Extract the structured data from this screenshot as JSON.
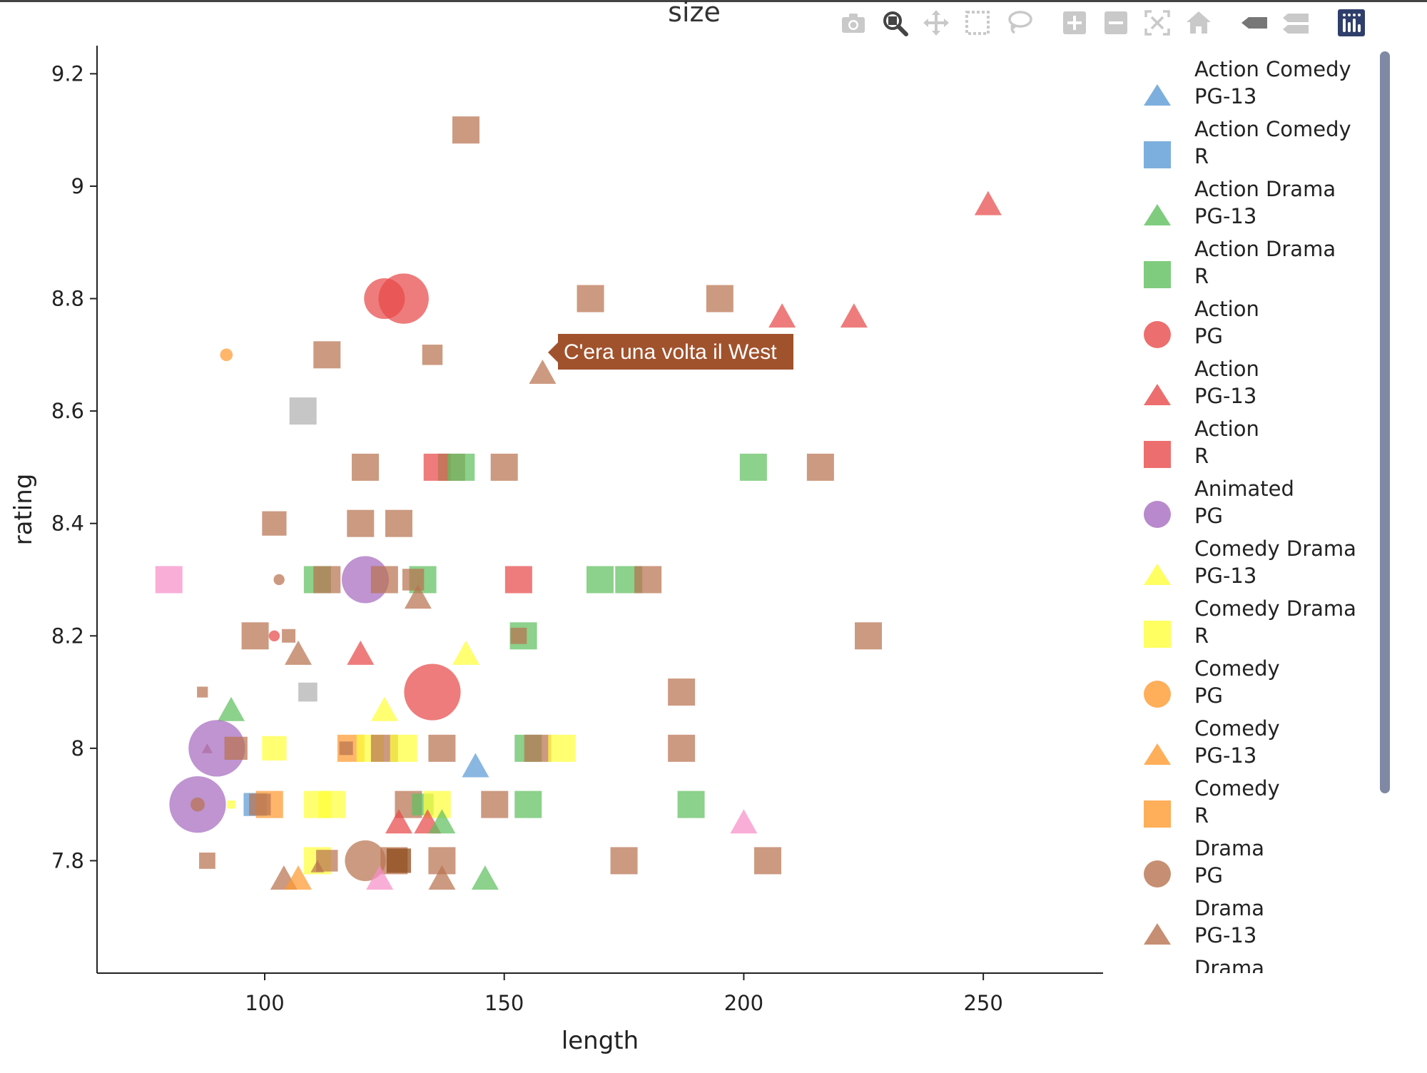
{
  "title": "size",
  "icons": [
    "camera-icon",
    "zoom-icon",
    "pan-icon",
    "box-select-icon",
    "lasso-select-icon",
    "zoom-in-icon",
    "zoom-out-icon",
    "autoscale-icon",
    "reset-axes-icon",
    "hover-closest-icon",
    "hover-compare-icon",
    "plotly-logo-icon"
  ],
  "tooltip": {
    "text": "C'era una volta il West",
    "color": "#a0522d"
  },
  "legend": [
    {
      "line1": "Action Comedy",
      "line2": "PG-13",
      "symbol": "triangle",
      "color": "#5b9bd5"
    },
    {
      "line1": "Action Comedy",
      "line2": "R",
      "symbol": "square",
      "color": "#5b9bd5"
    },
    {
      "line1": "Action Drama",
      "line2": "PG-13",
      "symbol": "triangle",
      "color": "#5fbf5f"
    },
    {
      "line1": "Action Drama",
      "line2": "R",
      "symbol": "square",
      "color": "#5fbf5f"
    },
    {
      "line1": "Action",
      "line2": "PG",
      "symbol": "circle",
      "color": "#e84a4a"
    },
    {
      "line1": "Action",
      "line2": "PG-13",
      "symbol": "triangle",
      "color": "#e84a4a"
    },
    {
      "line1": "Action",
      "line2": "R",
      "symbol": "square",
      "color": "#e84a4a"
    },
    {
      "line1": "Animated",
      "line2": "PG",
      "symbol": "circle",
      "color": "#a66bbf"
    },
    {
      "line1": "Comedy Drama",
      "line2": "PG-13",
      "symbol": "triangle",
      "color": "#ffff3a"
    },
    {
      "line1": "Comedy Drama",
      "line2": "R",
      "symbol": "square",
      "color": "#ffff3a"
    },
    {
      "line1": "Comedy",
      "line2": "PG",
      "symbol": "circle",
      "color": "#ff9a30"
    },
    {
      "line1": "Comedy",
      "line2": "PG-13",
      "symbol": "triangle",
      "color": "#ff9a30"
    },
    {
      "line1": "Comedy",
      "line2": "R",
      "symbol": "square",
      "color": "#ff9a30"
    },
    {
      "line1": "Drama",
      "line2": "PG",
      "symbol": "circle",
      "color": "#b87350"
    },
    {
      "line1": "Drama",
      "line2": "PG-13",
      "symbol": "triangle",
      "color": "#b87350"
    },
    {
      "line1": "Drama",
      "line2": "",
      "symbol": "square",
      "color": "#b87350"
    }
  ],
  "chart_data": {
    "type": "scatter",
    "title": "size",
    "xlabel": "length",
    "ylabel": "rating",
    "xlim": [
      65,
      275
    ],
    "ylim": [
      7.6,
      9.25
    ],
    "xticks": [
      100,
      150,
      200,
      250
    ],
    "yticks": [
      7.8,
      8,
      8.2,
      8.4,
      8.6,
      8.8,
      9,
      9.2
    ],
    "grid": false,
    "legend_position": "right",
    "points": [
      {
        "x": 142,
        "y": 9.1,
        "s": "square",
        "c": "#b87350",
        "z": 1
      },
      {
        "x": 251,
        "y": 8.97,
        "s": "triangle",
        "c": "#e84a4a",
        "z": 1
      },
      {
        "x": 125,
        "y": 8.8,
        "s": "circle",
        "c": "#e84a4a",
        "z": 1.3
      },
      {
        "x": 129,
        "y": 8.8,
        "s": "circle",
        "c": "#e84a4a",
        "z": 1.6
      },
      {
        "x": 168,
        "y": 8.8,
        "s": "square",
        "c": "#b87350",
        "z": 1
      },
      {
        "x": 195,
        "y": 8.8,
        "s": "square",
        "c": "#b87350",
        "z": 1
      },
      {
        "x": 208,
        "y": 8.77,
        "s": "triangle",
        "c": "#e84a4a",
        "z": 1
      },
      {
        "x": 223,
        "y": 8.77,
        "s": "triangle",
        "c": "#e84a4a",
        "z": 1
      },
      {
        "x": 92,
        "y": 8.7,
        "s": "circle",
        "c": "#ff9a30",
        "z": 0.4
      },
      {
        "x": 113,
        "y": 8.7,
        "s": "square",
        "c": "#b87350",
        "z": 1
      },
      {
        "x": 135,
        "y": 8.7,
        "s": "square",
        "c": "#b87350",
        "z": 0.75
      },
      {
        "x": 158,
        "y": 8.67,
        "s": "triangle",
        "c": "#b87350",
        "z": 1
      },
      {
        "x": 108,
        "y": 8.6,
        "s": "square",
        "c": "#b0b0b0",
        "z": 1
      },
      {
        "x": 121,
        "y": 8.5,
        "s": "square",
        "c": "#b87350",
        "z": 1
      },
      {
        "x": 136,
        "y": 8.5,
        "s": "square",
        "c": "#e84a4a",
        "z": 1
      },
      {
        "x": 139,
        "y": 8.5,
        "s": "square",
        "c": "#b87350",
        "z": 1
      },
      {
        "x": 141,
        "y": 8.5,
        "s": "square",
        "c": "#5fbf5f",
        "z": 1
      },
      {
        "x": 150,
        "y": 8.5,
        "s": "square",
        "c": "#b87350",
        "z": 1
      },
      {
        "x": 202,
        "y": 8.5,
        "s": "square",
        "c": "#5fbf5f",
        "z": 1
      },
      {
        "x": 216,
        "y": 8.5,
        "s": "square",
        "c": "#b87350",
        "z": 1
      },
      {
        "x": 102,
        "y": 8.4,
        "s": "square",
        "c": "#b87350",
        "z": 0.9
      },
      {
        "x": 120,
        "y": 8.4,
        "s": "square",
        "c": "#b87350",
        "z": 1
      },
      {
        "x": 128,
        "y": 8.4,
        "s": "square",
        "c": "#b87350",
        "z": 1
      },
      {
        "x": 80,
        "y": 8.3,
        "s": "square",
        "c": "#f78fc8",
        "z": 1
      },
      {
        "x": 103,
        "y": 8.3,
        "s": "circle",
        "c": "#b87350",
        "z": 0.35
      },
      {
        "x": 111,
        "y": 8.3,
        "s": "square",
        "c": "#5fbf5f",
        "z": 1
      },
      {
        "x": 113,
        "y": 8.3,
        "s": "square",
        "c": "#b87350",
        "z": 1
      },
      {
        "x": 121,
        "y": 8.3,
        "s": "circle",
        "c": "#a66bbf",
        "z": 1.5
      },
      {
        "x": 125,
        "y": 8.3,
        "s": "square",
        "c": "#b87350",
        "z": 1
      },
      {
        "x": 133,
        "y": 8.3,
        "s": "square",
        "c": "#5fbf5f",
        "z": 1
      },
      {
        "x": 131,
        "y": 8.3,
        "s": "square",
        "c": "#b87350",
        "z": 0.8
      },
      {
        "x": 132,
        "y": 8.27,
        "s": "triangle",
        "c": "#b87350",
        "z": 1
      },
      {
        "x": 153,
        "y": 8.3,
        "s": "square",
        "c": "#e84a4a",
        "z": 1
      },
      {
        "x": 170,
        "y": 8.3,
        "s": "square",
        "c": "#5fbf5f",
        "z": 1
      },
      {
        "x": 176,
        "y": 8.3,
        "s": "square",
        "c": "#5fbf5f",
        "z": 1
      },
      {
        "x": 180,
        "y": 8.3,
        "s": "square",
        "c": "#b87350",
        "z": 1
      },
      {
        "x": 98,
        "y": 8.2,
        "s": "square",
        "c": "#b87350",
        "z": 1
      },
      {
        "x": 102,
        "y": 8.2,
        "s": "circle",
        "c": "#e84a4a",
        "z": 0.35
      },
      {
        "x": 105,
        "y": 8.2,
        "s": "square",
        "c": "#b87350",
        "z": 0.5
      },
      {
        "x": 107,
        "y": 8.17,
        "s": "triangle",
        "c": "#b87350",
        "z": 1
      },
      {
        "x": 120,
        "y": 8.17,
        "s": "triangle",
        "c": "#e84a4a",
        "z": 1
      },
      {
        "x": 142,
        "y": 8.17,
        "s": "triangle",
        "c": "#ffff3a",
        "z": 1
      },
      {
        "x": 154,
        "y": 8.2,
        "s": "square",
        "c": "#5fbf5f",
        "z": 1
      },
      {
        "x": 153,
        "y": 8.2,
        "s": "square",
        "c": "#b87350",
        "z": 0.6
      },
      {
        "x": 226,
        "y": 8.2,
        "s": "square",
        "c": "#b87350",
        "z": 1
      },
      {
        "x": 87,
        "y": 8.1,
        "s": "square",
        "c": "#b87350",
        "z": 0.4
      },
      {
        "x": 109,
        "y": 8.1,
        "s": "square",
        "c": "#b0b0b0",
        "z": 0.7
      },
      {
        "x": 135,
        "y": 8.1,
        "s": "circle",
        "c": "#e84a4a",
        "z": 1.8
      },
      {
        "x": 187,
        "y": 8.1,
        "s": "square",
        "c": "#b87350",
        "z": 1
      },
      {
        "x": 93,
        "y": 8.07,
        "s": "triangle",
        "c": "#5fbf5f",
        "z": 1
      },
      {
        "x": 125,
        "y": 8.07,
        "s": "triangle",
        "c": "#ffff3a",
        "z": 1
      },
      {
        "x": 88,
        "y": 8.0,
        "s": "triangle",
        "c": "#b87350",
        "z": 0.4
      },
      {
        "x": 90,
        "y": 8.0,
        "s": "circle",
        "c": "#a66bbf",
        "z": 1.8
      },
      {
        "x": 94,
        "y": 8.0,
        "s": "square",
        "c": "#b87350",
        "z": 0.85
      },
      {
        "x": 102,
        "y": 8.0,
        "s": "square",
        "c": "#ffff3a",
        "z": 0.9
      },
      {
        "x": 118,
        "y": 8.0,
        "s": "square",
        "c": "#ff9a30",
        "z": 1
      },
      {
        "x": 117,
        "y": 8.0,
        "s": "square",
        "c": "#b87350",
        "z": 0.5
      },
      {
        "x": 122,
        "y": 8.0,
        "s": "square",
        "c": "#ffff3a",
        "z": 1
      },
      {
        "x": 125,
        "y": 8.0,
        "s": "square",
        "c": "#b87350",
        "z": 1
      },
      {
        "x": 129,
        "y": 8.0,
        "s": "square",
        "c": "#ffff3a",
        "z": 1
      },
      {
        "x": 137,
        "y": 8.0,
        "s": "square",
        "c": "#b87350",
        "z": 1
      },
      {
        "x": 144,
        "y": 7.97,
        "s": "triangle",
        "c": "#5b9bd5",
        "z": 1
      },
      {
        "x": 155,
        "y": 8.0,
        "s": "square",
        "c": "#5fbf5f",
        "z": 1
      },
      {
        "x": 157,
        "y": 8.0,
        "s": "square",
        "c": "#b87350",
        "z": 1
      },
      {
        "x": 162,
        "y": 8.0,
        "s": "square",
        "c": "#ffff3a",
        "z": 1
      },
      {
        "x": 187,
        "y": 8.0,
        "s": "square",
        "c": "#b87350",
        "z": 1
      },
      {
        "x": 86,
        "y": 7.9,
        "s": "circle",
        "c": "#a66bbf",
        "z": 1.8
      },
      {
        "x": 86,
        "y": 7.9,
        "s": "circle",
        "c": "#b87350",
        "z": 0.45
      },
      {
        "x": 93,
        "y": 7.9,
        "s": "square",
        "c": "#ffff3a",
        "z": 0.3
      },
      {
        "x": 98,
        "y": 7.9,
        "s": "square",
        "c": "#5b9bd5",
        "z": 0.85
      },
      {
        "x": 101,
        "y": 7.9,
        "s": "square",
        "c": "#ff9a30",
        "z": 1
      },
      {
        "x": 99,
        "y": 7.9,
        "s": "square",
        "c": "#b87350",
        "z": 0.8
      },
      {
        "x": 111,
        "y": 7.9,
        "s": "square",
        "c": "#ffff3a",
        "z": 1
      },
      {
        "x": 114,
        "y": 7.9,
        "s": "square",
        "c": "#ffff3a",
        "z": 1
      },
      {
        "x": 130,
        "y": 7.9,
        "s": "square",
        "c": "#b87350",
        "z": 1
      },
      {
        "x": 133,
        "y": 7.9,
        "s": "square",
        "c": "#5fbf5f",
        "z": 0.8
      },
      {
        "x": 136,
        "y": 7.9,
        "s": "square",
        "c": "#ffff3a",
        "z": 1
      },
      {
        "x": 148,
        "y": 7.9,
        "s": "square",
        "c": "#b87350",
        "z": 1
      },
      {
        "x": 155,
        "y": 7.9,
        "s": "square",
        "c": "#5fbf5f",
        "z": 1
      },
      {
        "x": 189,
        "y": 7.9,
        "s": "square",
        "c": "#5fbf5f",
        "z": 1
      },
      {
        "x": 128,
        "y": 7.87,
        "s": "triangle",
        "c": "#e84a4a",
        "z": 1
      },
      {
        "x": 134,
        "y": 7.87,
        "s": "triangle",
        "c": "#e84a4a",
        "z": 1
      },
      {
        "x": 137,
        "y": 7.87,
        "s": "triangle",
        "c": "#5fbf5f",
        "z": 1
      },
      {
        "x": 200,
        "y": 7.87,
        "s": "triangle",
        "c": "#f78fc8",
        "z": 1
      },
      {
        "x": 88,
        "y": 7.8,
        "s": "square",
        "c": "#b87350",
        "z": 0.6
      },
      {
        "x": 111,
        "y": 7.8,
        "s": "square",
        "c": "#ffff3a",
        "z": 1
      },
      {
        "x": 113,
        "y": 7.8,
        "s": "square",
        "c": "#b87350",
        "z": 0.8
      },
      {
        "x": 121,
        "y": 7.8,
        "s": "circle",
        "c": "#b87350",
        "z": 1.3
      },
      {
        "x": 127,
        "y": 7.8,
        "s": "square",
        "c": "#b87350",
        "z": 1
      },
      {
        "x": 128,
        "y": 7.8,
        "s": "square",
        "c": "#8b4513",
        "z": 0.9
      },
      {
        "x": 137,
        "y": 7.8,
        "s": "square",
        "c": "#b87350",
        "z": 1
      },
      {
        "x": 175,
        "y": 7.8,
        "s": "square",
        "c": "#b87350",
        "z": 1
      },
      {
        "x": 205,
        "y": 7.8,
        "s": "square",
        "c": "#b87350",
        "z": 1
      },
      {
        "x": 104,
        "y": 7.77,
        "s": "triangle",
        "c": "#b87350",
        "z": 1
      },
      {
        "x": 107,
        "y": 7.77,
        "s": "triangle",
        "c": "#ff9a30",
        "z": 1
      },
      {
        "x": 111,
        "y": 7.79,
        "s": "triangle",
        "c": "#b87350",
        "z": 0.5
      },
      {
        "x": 124,
        "y": 7.77,
        "s": "triangle",
        "c": "#f78fc8",
        "z": 1
      },
      {
        "x": 137,
        "y": 7.77,
        "s": "triangle",
        "c": "#b87350",
        "z": 1
      },
      {
        "x": 146,
        "y": 7.77,
        "s": "triangle",
        "c": "#5fbf5f",
        "z": 1
      }
    ],
    "hover_point": {
      "x": 158,
      "y": 8.67
    }
  }
}
